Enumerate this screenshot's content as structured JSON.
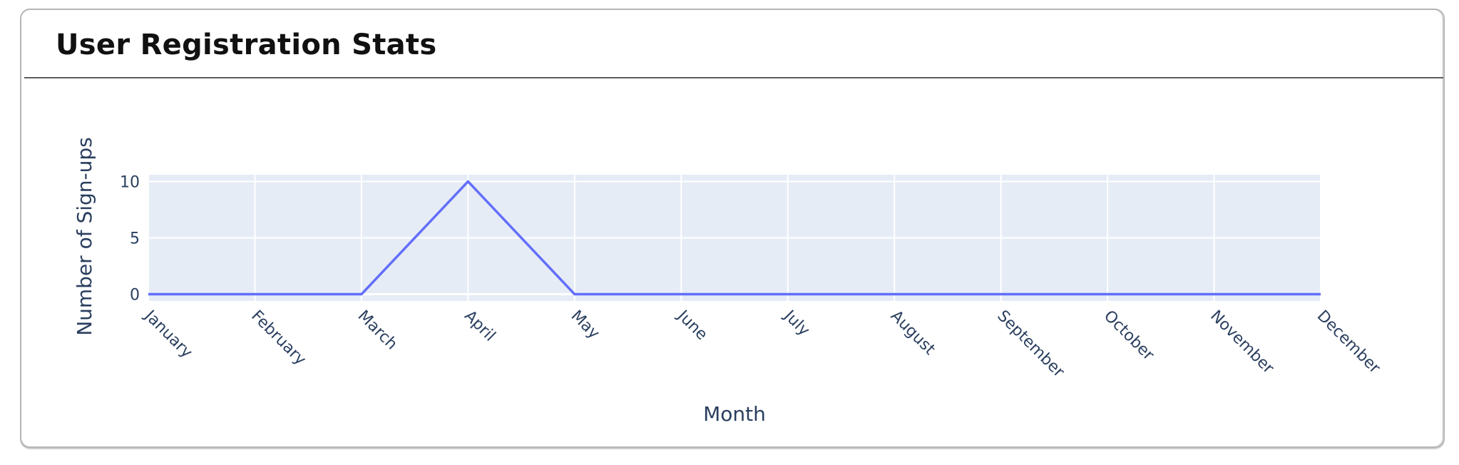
{
  "card": {
    "title": "User Registration Stats"
  },
  "chart_data": {
    "type": "line",
    "title": "",
    "xlabel": "Month",
    "ylabel": "Number of Sign-ups",
    "categories": [
      "January",
      "February",
      "March",
      "April",
      "May",
      "June",
      "July",
      "August",
      "September",
      "October",
      "November",
      "December"
    ],
    "series": [
      {
        "values": [
          0,
          0,
          0,
          10,
          0,
          0,
          0,
          0,
          0,
          0,
          0,
          0
        ],
        "color": "#636efa"
      }
    ],
    "yticks": [
      0,
      5,
      10
    ],
    "ylim": [
      -0.6,
      10.6
    ],
    "grid": true,
    "plot_background": "#e5ecf6",
    "grid_color": "#ffffff"
  }
}
